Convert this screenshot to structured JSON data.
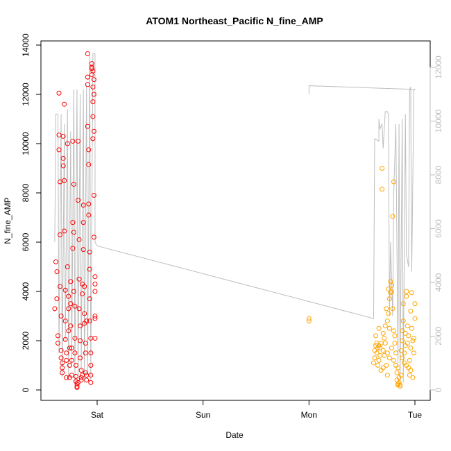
{
  "chart_data": {
    "type": "scatter",
    "title": "ATOM1 Northeast_Pacific N_fine_AMP",
    "xlabel": "Date",
    "ylabel": "N_fine_AMP",
    "x_ticks": [
      {
        "label": "Sat",
        "value": 0
      },
      {
        "label": "Sun",
        "value": 1
      },
      {
        "label": "Mon",
        "value": 2
      },
      {
        "label": "Tue",
        "value": 3
      }
    ],
    "xlim": [
      -0.5,
      3.1
    ],
    "ylim": [
      0,
      14000
    ],
    "y_ticks": [
      0,
      2000,
      4000,
      6000,
      8000,
      10000,
      12000,
      14000
    ],
    "y2_ticks": [
      0,
      2000,
      4000,
      6000,
      8000,
      10000,
      12000
    ],
    "grid": false,
    "colors": {
      "red": "#ff0000",
      "orange": "#ffa500",
      "line": "#bebebe"
    },
    "series": [
      {
        "color": "red",
        "points": [
          [
            -0.4,
            3300
          ],
          [
            -0.39,
            5200
          ],
          [
            -0.38,
            4800
          ],
          [
            -0.38,
            3700
          ],
          [
            -0.37,
            2200
          ],
          [
            -0.37,
            1900
          ],
          [
            -0.36,
            12050
          ],
          [
            -0.36,
            10350
          ],
          [
            -0.36,
            9750
          ],
          [
            -0.35,
            8450
          ],
          [
            -0.35,
            6300
          ],
          [
            -0.35,
            4200
          ],
          [
            -0.34,
            3000
          ],
          [
            -0.34,
            1600
          ],
          [
            -0.34,
            1300
          ],
          [
            -0.33,
            1100
          ],
          [
            -0.33,
            900
          ],
          [
            -0.33,
            700
          ],
          [
            -0.32,
            10300
          ],
          [
            -0.32,
            9400
          ],
          [
            -0.32,
            9100
          ],
          [
            -0.31,
            11600
          ],
          [
            -0.31,
            8500
          ],
          [
            -0.31,
            6450
          ],
          [
            -0.3,
            4050
          ],
          [
            -0.3,
            2800
          ],
          [
            -0.3,
            2050
          ],
          [
            -0.29,
            1500
          ],
          [
            -0.29,
            1200
          ],
          [
            -0.29,
            500
          ],
          [
            -0.28,
            10000
          ],
          [
            -0.28,
            5000
          ],
          [
            -0.27,
            3800
          ],
          [
            -0.27,
            3300
          ],
          [
            -0.27,
            2400
          ],
          [
            -0.26,
            1700
          ],
          [
            -0.26,
            1000
          ],
          [
            -0.26,
            500
          ],
          [
            -0.25,
            4400
          ],
          [
            -0.25,
            3500
          ],
          [
            -0.25,
            2600
          ],
          [
            -0.24,
            1700
          ],
          [
            -0.24,
            1200
          ],
          [
            -0.24,
            600
          ],
          [
            -0.23,
            10100
          ],
          [
            -0.23,
            6800
          ],
          [
            -0.23,
            5750
          ],
          [
            -0.22,
            8350
          ],
          [
            -0.22,
            6400
          ],
          [
            -0.22,
            4000
          ],
          [
            -0.21,
            3400
          ],
          [
            -0.21,
            2100
          ],
          [
            -0.21,
            1500
          ],
          [
            -0.2,
            1000
          ],
          [
            -0.2,
            550
          ],
          [
            -0.2,
            350
          ],
          [
            -0.19,
            250
          ],
          [
            -0.19,
            150
          ],
          [
            -0.19,
            100
          ],
          [
            -0.18,
            300
          ],
          [
            -0.18,
            10100
          ],
          [
            -0.18,
            7700
          ],
          [
            -0.17,
            6100
          ],
          [
            -0.17,
            4500
          ],
          [
            -0.17,
            3300
          ],
          [
            -0.16,
            2600
          ],
          [
            -0.16,
            2000
          ],
          [
            -0.16,
            1300
          ],
          [
            -0.15,
            800
          ],
          [
            -0.15,
            500
          ],
          [
            -0.15,
            400
          ],
          [
            -0.14,
            600
          ],
          [
            -0.14,
            4300
          ],
          [
            -0.14,
            3900
          ],
          [
            -0.13,
            7500
          ],
          [
            -0.13,
            6800
          ],
          [
            -0.13,
            5700
          ],
          [
            -0.12,
            4200
          ],
          [
            -0.12,
            3100
          ],
          [
            -0.12,
            2700
          ],
          [
            -0.11,
            1900
          ],
          [
            -0.11,
            1500
          ],
          [
            -0.11,
            700
          ],
          [
            -0.1,
            400
          ],
          [
            -0.1,
            600
          ],
          [
            -0.1,
            2800
          ],
          [
            -0.09,
            13650
          ],
          [
            -0.09,
            12700
          ],
          [
            -0.09,
            12400
          ],
          [
            -0.09,
            10700
          ],
          [
            -0.08,
            9750
          ],
          [
            -0.08,
            9150
          ],
          [
            -0.08,
            7550
          ],
          [
            -0.08,
            7100
          ],
          [
            -0.07,
            5600
          ],
          [
            -0.07,
            4900
          ],
          [
            -0.07,
            3700
          ],
          [
            -0.07,
            2800
          ],
          [
            -0.06,
            2100
          ],
          [
            -0.06,
            1500
          ],
          [
            -0.06,
            1000
          ],
          [
            -0.06,
            600
          ],
          [
            -0.06,
            300
          ],
          [
            -0.05,
            13250
          ],
          [
            -0.05,
            13050
          ],
          [
            -0.05,
            12800
          ],
          [
            -0.04,
            12300
          ],
          [
            -0.04,
            11700
          ],
          [
            -0.04,
            10200
          ],
          [
            -0.04,
            11100
          ],
          [
            -0.03,
            12600
          ],
          [
            -0.03,
            10500
          ],
          [
            -0.03,
            7900
          ],
          [
            -0.03,
            6200
          ],
          [
            -0.02,
            4300
          ],
          [
            -0.02,
            4000
          ],
          [
            -0.02,
            3000
          ],
          [
            -0.02,
            2100
          ],
          [
            -0.05,
            13100
          ],
          [
            -0.04,
            12950
          ],
          [
            -0.03,
            12000
          ],
          [
            -0.02,
            4600
          ],
          [
            -0.02,
            2900
          ]
        ]
      },
      {
        "color": "orange",
        "points": [
          [
            2.0,
            2900
          ],
          [
            2.0,
            2800
          ],
          [
            2.61,
            1100
          ],
          [
            2.62,
            1300
          ],
          [
            2.62,
            1600
          ],
          [
            2.63,
            1800
          ],
          [
            2.63,
            2200
          ],
          [
            2.64,
            1900
          ],
          [
            2.64,
            1500
          ],
          [
            2.65,
            1700
          ],
          [
            2.65,
            1000
          ],
          [
            2.66,
            2500
          ],
          [
            2.66,
            1800
          ],
          [
            2.67,
            1700
          ],
          [
            2.67,
            1400
          ],
          [
            2.68,
            1900
          ],
          [
            2.68,
            800
          ],
          [
            2.69,
            8150
          ],
          [
            2.69,
            9000
          ],
          [
            2.7,
            2300
          ],
          [
            2.7,
            1600
          ],
          [
            2.71,
            2100
          ],
          [
            2.71,
            1400
          ],
          [
            2.72,
            2600
          ],
          [
            2.72,
            1900
          ],
          [
            2.73,
            1000
          ],
          [
            2.73,
            3300
          ],
          [
            2.74,
            2800
          ],
          [
            2.74,
            1500
          ],
          [
            2.75,
            3100
          ],
          [
            2.75,
            4100
          ],
          [
            2.76,
            3700
          ],
          [
            2.76,
            2500
          ],
          [
            2.77,
            3950
          ],
          [
            2.77,
            4400
          ],
          [
            2.78,
            4250
          ],
          [
            2.78,
            4000
          ],
          [
            2.79,
            3300
          ],
          [
            2.79,
            7050
          ],
          [
            2.8,
            8450
          ],
          [
            2.8,
            2400
          ],
          [
            2.81,
            2200
          ],
          [
            2.81,
            1900
          ],
          [
            2.82,
            1500
          ],
          [
            2.82,
            1000
          ],
          [
            2.83,
            700
          ],
          [
            2.83,
            400
          ],
          [
            2.84,
            250
          ],
          [
            2.84,
            200
          ],
          [
            2.85,
            300
          ],
          [
            2.85,
            500
          ],
          [
            2.86,
            200
          ],
          [
            2.86,
            150
          ],
          [
            2.87,
            600
          ],
          [
            2.87,
            1600
          ],
          [
            2.88,
            2400
          ],
          [
            2.88,
            2000
          ],
          [
            2.89,
            3500
          ],
          [
            2.89,
            2800
          ],
          [
            2.9,
            1100
          ],
          [
            2.9,
            1500
          ],
          [
            2.91,
            1800
          ],
          [
            2.91,
            2300
          ],
          [
            2.92,
            3800
          ],
          [
            2.92,
            4000
          ],
          [
            2.93,
            2600
          ],
          [
            2.93,
            1900
          ],
          [
            2.94,
            2200
          ],
          [
            2.94,
            900
          ],
          [
            2.95,
            600
          ],
          [
            2.95,
            1200
          ],
          [
            2.96,
            1700
          ],
          [
            2.96,
            3200
          ],
          [
            2.97,
            3950
          ],
          [
            2.97,
            2500
          ],
          [
            2.98,
            2000
          ],
          [
            2.98,
            500
          ],
          [
            2.99,
            1500
          ],
          [
            2.99,
            2100
          ],
          [
            3.0,
            3500
          ],
          [
            3.0,
            2900
          ],
          [
            2.76,
            1300
          ],
          [
            2.78,
            1700
          ],
          [
            2.8,
            1200
          ],
          [
            2.84,
            900
          ],
          [
            2.88,
            1300
          ],
          [
            2.92,
            1000
          ],
          [
            2.96,
            800
          ],
          [
            2.66,
            1200
          ],
          [
            2.7,
            900
          ],
          [
            2.74,
            600
          ]
        ]
      },
      {
        "name": "right-axis line",
        "color": "line",
        "points": [
          [
            -0.4,
            6000
          ],
          [
            -0.39,
            11200
          ],
          [
            -0.37,
            11200
          ],
          [
            -0.36,
            1500
          ],
          [
            -0.34,
            11200
          ],
          [
            -0.33,
            500
          ],
          [
            -0.31,
            10800
          ],
          [
            -0.3,
            2000
          ],
          [
            -0.28,
            11400
          ],
          [
            -0.27,
            500
          ],
          [
            -0.25,
            10500
          ],
          [
            -0.24,
            1000
          ],
          [
            -0.22,
            12200
          ],
          [
            -0.21,
            300
          ],
          [
            -0.19,
            12200
          ],
          [
            -0.18,
            500
          ],
          [
            -0.16,
            12000
          ],
          [
            -0.15,
            800
          ],
          [
            -0.13,
            12200
          ],
          [
            -0.12,
            300
          ],
          [
            -0.1,
            12400
          ],
          [
            -0.09,
            600
          ],
          [
            -0.07,
            13600
          ],
          [
            -0.06,
            400
          ],
          [
            -0.04,
            13650
          ],
          [
            -0.02,
            13650
          ],
          [
            -0.02,
            6000
          ],
          [
            0.0,
            5850
          ],
          [
            2.61,
            2900
          ],
          [
            2.62,
            10200
          ],
          [
            2.66,
            10100
          ],
          [
            2.66,
            11000
          ],
          [
            2.67,
            10600
          ],
          [
            2.69,
            10800
          ],
          [
            2.7,
            9800
          ],
          [
            2.72,
            11300
          ],
          [
            2.74,
            11300
          ],
          [
            2.75,
            11200
          ],
          [
            2.76,
            3000
          ],
          [
            2.77,
            6000
          ],
          [
            2.79,
            3000
          ],
          [
            2.8,
            8000
          ],
          [
            2.82,
            10800
          ],
          [
            2.84,
            1000
          ],
          [
            2.85,
            10800
          ],
          [
            2.86,
            400
          ],
          [
            2.88,
            11000
          ],
          [
            2.89,
            300
          ],
          [
            2.91,
            11200
          ],
          [
            2.92,
            5500
          ],
          [
            2.94,
            5000
          ],
          [
            2.95,
            12200
          ],
          [
            2.96,
            12300
          ],
          [
            2.97,
            4800
          ],
          [
            2.99,
            12150
          ],
          [
            3.0,
            12200
          ],
          [
            2.0,
            12350
          ],
          [
            2.0,
            12000
          ]
        ]
      }
    ]
  }
}
